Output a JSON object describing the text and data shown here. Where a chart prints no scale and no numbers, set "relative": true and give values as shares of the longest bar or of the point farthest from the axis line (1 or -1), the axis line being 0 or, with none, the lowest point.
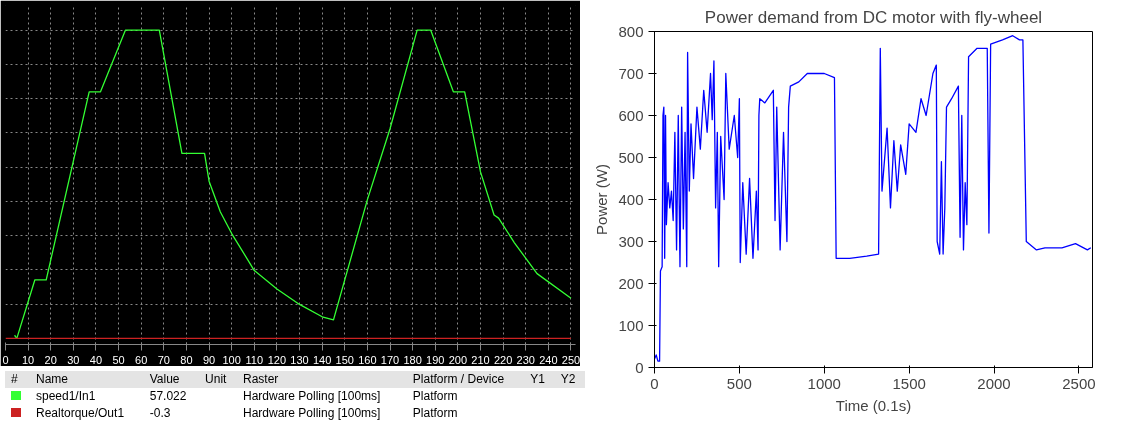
{
  "chart_data": [
    {
      "type": "line",
      "relative": true,
      "grid": true,
      "legend": "bottom",
      "xlim": [
        0,
        252
      ],
      "xticks": [
        0,
        10,
        20,
        30,
        40,
        50,
        60,
        70,
        80,
        90,
        100,
        110,
        120,
        130,
        140,
        150,
        160,
        170,
        180,
        190,
        200,
        210,
        220,
        230,
        240,
        250
      ],
      "annotations": [
        "#",
        "Name",
        "Value",
        "Unit",
        "Raster",
        "Platform / Device",
        "Y1",
        "Y2",
        "57.022",
        "Hardware Polling [100ms]",
        "Platform",
        "-0.3",
        "Hardware Polling [100ms]",
        "Platform"
      ],
      "series": [
        {
          "name": "speed1/In1",
          "color": "#33ff33",
          "x": [
            4,
            5,
            13,
            18,
            37,
            42,
            53,
            68,
            78,
            88,
            90,
            95,
            100,
            110,
            120,
            130,
            140,
            145,
            160,
            170,
            182,
            188,
            198,
            203,
            210,
            216,
            218,
            225,
            235,
            250
          ],
          "values": [
            0.01,
            0.0,
            0.19,
            0.19,
            0.8,
            0.8,
            1.0,
            1.0,
            0.6,
            0.6,
            0.51,
            0.41,
            0.34,
            0.22,
            0.16,
            0.11,
            0.07,
            0.06,
            0.45,
            0.68,
            1.0,
            1.0,
            0.8,
            0.8,
            0.54,
            0.4,
            0.39,
            0.31,
            0.21,
            0.13
          ]
        },
        {
          "name": "Realtorque/Out1",
          "color": "#cc2222",
          "x": [
            0,
            250
          ],
          "values": [
            0,
            0
          ]
        }
      ]
    },
    {
      "type": "line",
      "title": "Power demand from DC motor with fly-wheel",
      "xlabel": "Time (0.1s)",
      "ylabel": "Power (W)",
      "xlim": [
        0,
        2580
      ],
      "ylim": [
        0,
        800
      ],
      "xticks": [
        0,
        500,
        1000,
        1500,
        2000,
        2500
      ],
      "yticks": [
        0,
        100,
        200,
        300,
        400,
        500,
        600,
        700,
        800
      ],
      "series": [
        {
          "color": "#0000ff",
          "x": [
            0,
            10,
            20,
            30,
            35,
            45,
            50,
            55,
            60,
            65,
            70,
            80,
            90,
            100,
            110,
            120,
            130,
            140,
            150,
            160,
            170,
            180,
            190,
            195,
            205,
            215,
            230,
            250,
            270,
            290,
            310,
            330,
            340,
            350,
            360,
            370,
            378,
            390,
            410,
            420,
            440,
            470,
            490,
            500,
            505,
            520,
            540,
            560,
            580,
            600,
            610,
            615,
            620,
            650,
            700,
            710,
            720,
            740,
            760,
            780,
            790,
            800,
            850,
            900,
            1000,
            1060,
            1070,
            1150,
            1250,
            1320,
            1330,
            1340,
            1370,
            1390,
            1410,
            1430,
            1450,
            1480,
            1500,
            1540,
            1570,
            1600,
            1640,
            1660,
            1665,
            1680,
            1690,
            1700,
            1710,
            1720,
            1750,
            1790,
            1800,
            1810,
            1820,
            1830,
            1840,
            1850,
            1900,
            1960,
            1970,
            1980,
            2050,
            2110,
            2150,
            2170,
            2190,
            2250,
            2300,
            2400,
            2480,
            2550,
            2570
          ],
          "values": [
            20,
            30,
            15,
            15,
            230,
            240,
            600,
            620,
            260,
            600,
            340,
            440,
            380,
            420,
            350,
            560,
            280,
            600,
            240,
            620,
            330,
            560,
            240,
            750,
            420,
            580,
            450,
            620,
            520,
            660,
            560,
            700,
            590,
            730,
            380,
            560,
            240,
            550,
            400,
            700,
            520,
            600,
            500,
            640,
            250,
            440,
            270,
            450,
            260,
            420,
            280,
            600,
            640,
            630,
            660,
            350,
            620,
            280,
            560,
            300,
            620,
            670,
            680,
            700,
            700,
            690,
            260,
            260,
            265,
            270,
            760,
            420,
            570,
            380,
            540,
            420,
            530,
            460,
            580,
            560,
            640,
            600,
            700,
            720,
            300,
            270,
            490,
            270,
            380,
            620,
            640,
            670,
            310,
            600,
            280,
            440,
            340,
            740,
            760,
            760,
            320,
            770,
            780,
            790,
            780,
            780,
            300,
            280,
            285,
            285,
            295,
            280,
            285
          ]
        }
      ]
    }
  ]
}
